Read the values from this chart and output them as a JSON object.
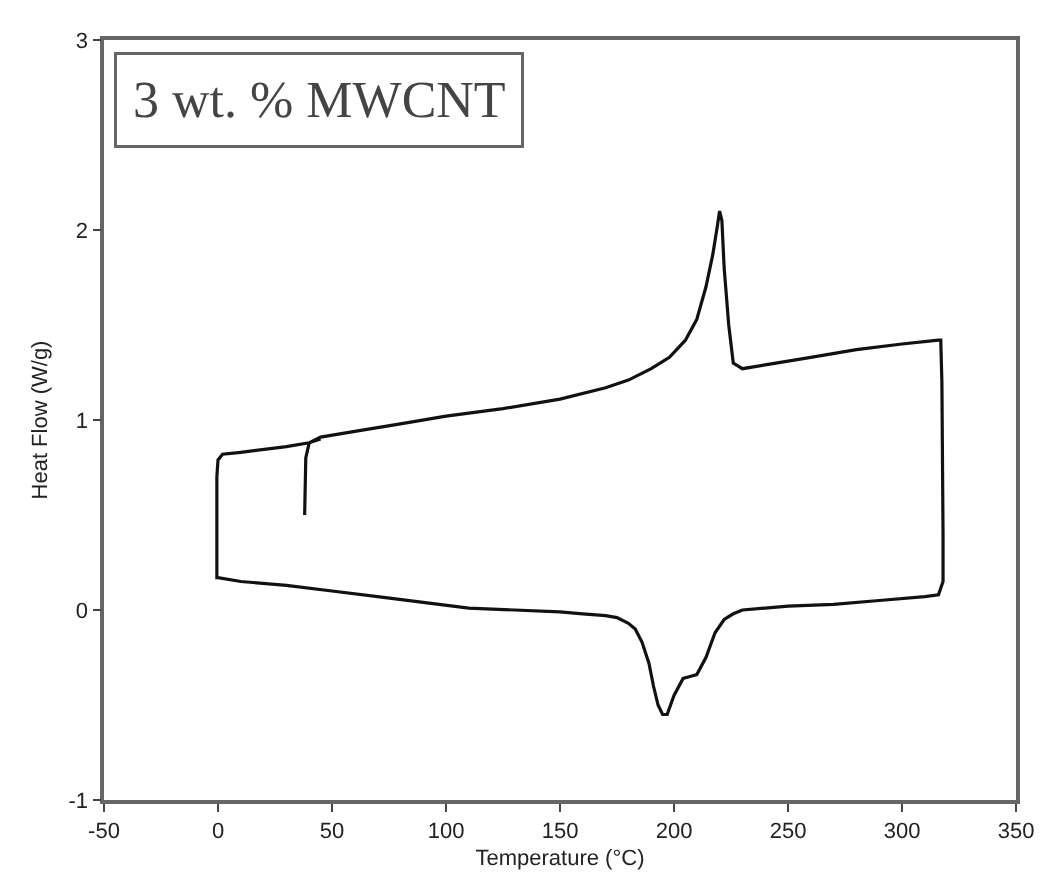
{
  "chart_data": {
    "type": "line",
    "xlabel": "Temperature (°C)",
    "ylabel": "Heat Flow (W/g)",
    "annotations": [
      "3 wt. % MWCNT"
    ],
    "xlim": [
      -50,
      350
    ],
    "xticks": [
      -50,
      0,
      50,
      100,
      150,
      200,
      250,
      300,
      350
    ],
    "ylim": [
      -1,
      3
    ],
    "yticks": [
      -1,
      0,
      1,
      2,
      3
    ],
    "grid": false,
    "marker": "none",
    "line_style": "solid",
    "series": [
      {
        "color": "#111111",
        "x": [
          38,
          38.5,
          40,
          45,
          60,
          80,
          100,
          125,
          150,
          170,
          180,
          190,
          198,
          205,
          210,
          214,
          217,
          219,
          220,
          221,
          222,
          224,
          226,
          230,
          240,
          260,
          280,
          300,
          316,
          317,
          317.5,
          318,
          318,
          316,
          310,
          290,
          270,
          250,
          240,
          230,
          226,
          222,
          218,
          214,
          210,
          207,
          204,
          200,
          197,
          195,
          193,
          191,
          189,
          186,
          183,
          180,
          175,
          170,
          160,
          150,
          130,
          110,
          90,
          70,
          50,
          30,
          10,
          0,
          -0.5,
          -0.5,
          0,
          2,
          10,
          30,
          40,
          45
        ],
        "values": [
          0.5,
          0.8,
          0.88,
          0.91,
          0.94,
          0.98,
          1.02,
          1.06,
          1.11,
          1.17,
          1.21,
          1.27,
          1.33,
          1.42,
          1.53,
          1.7,
          1.87,
          2.02,
          2.1,
          2.05,
          1.8,
          1.5,
          1.3,
          1.27,
          1.29,
          1.33,
          1.37,
          1.4,
          1.42,
          1.42,
          1.2,
          0.4,
          0.15,
          0.08,
          0.07,
          0.05,
          0.03,
          0.02,
          0.01,
          0,
          -0.02,
          -0.05,
          -0.12,
          -0.25,
          -0.34,
          -0.35,
          -0.36,
          -0.45,
          -0.55,
          -0.55,
          -0.5,
          -0.4,
          -0.28,
          -0.17,
          -0.1,
          -0.07,
          -0.04,
          -0.03,
          -0.02,
          -0.01,
          0,
          0.01,
          0.04,
          0.07,
          0.1,
          0.13,
          0.15,
          0.17,
          0.17,
          0.7,
          0.79,
          0.82,
          0.83,
          0.86,
          0.88,
          0.9
        ]
      }
    ]
  }
}
